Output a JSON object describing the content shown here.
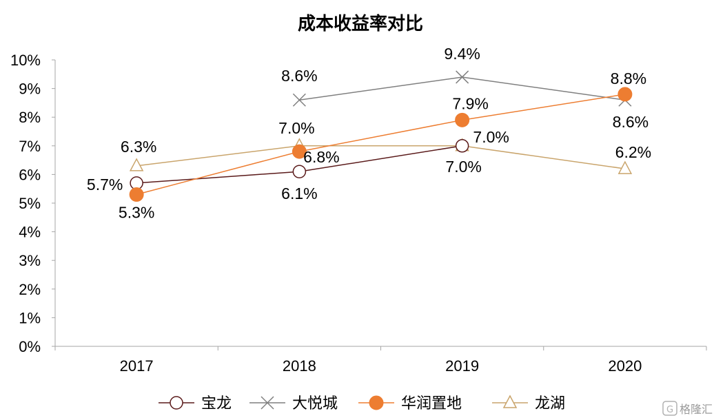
{
  "chart_data": {
    "type": "line",
    "title": "成本收益率对比",
    "categories": [
      "2017",
      "2018",
      "2019",
      "2020"
    ],
    "ylim": [
      0,
      10
    ],
    "y_ticks": [
      "0%",
      "1%",
      "2%",
      "3%",
      "4%",
      "5%",
      "6%",
      "7%",
      "8%",
      "9%",
      "10%"
    ],
    "grid": false,
    "legend_position": "bottom",
    "series": [
      {
        "name": "宝龙",
        "marker": "open-circle",
        "color": "#5a1a1a",
        "values": [
          5.7,
          6.1,
          7.0,
          null
        ],
        "labels": [
          "5.7%",
          "6.1%",
          "7.0%",
          ""
        ]
      },
      {
        "name": "大悦城",
        "marker": "x",
        "color": "#7f7f7f",
        "values": [
          null,
          8.6,
          9.4,
          8.6
        ],
        "labels": [
          "",
          "8.6%",
          "9.4%",
          "8.6%"
        ]
      },
      {
        "name": "华润置地",
        "marker": "filled-circle",
        "color": "#ed7d31",
        "values": [
          5.3,
          6.8,
          7.9,
          8.8
        ],
        "labels": [
          "5.3%",
          "6.8%",
          "7.9%",
          "8.8%"
        ]
      },
      {
        "name": "龙湖",
        "marker": "open-triangle",
        "color": "#c9a46b",
        "values": [
          6.3,
          7.0,
          7.0,
          6.2
        ],
        "labels": [
          "6.3%",
          "7.0%",
          "7.0%",
          "6.2%"
        ]
      }
    ]
  },
  "watermark": {
    "text": "格隆汇"
  }
}
